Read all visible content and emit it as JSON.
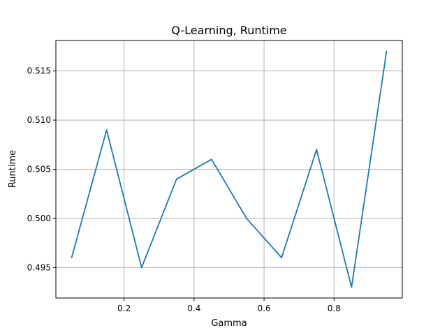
{
  "chart_data": {
    "type": "line",
    "title": "Q-Learning, Runtime",
    "xlabel": "Gamma",
    "ylabel": "Runtime",
    "xlim": [
      0.005,
      0.995
    ],
    "ylim": [
      0.4919,
      0.5181
    ],
    "xticks": [
      0.2,
      0.4,
      0.6,
      0.8
    ],
    "xtick_labels": [
      "0.2",
      "0.4",
      "0.6",
      "0.8"
    ],
    "yticks": [
      0.495,
      0.5,
      0.505,
      0.51,
      0.515
    ],
    "ytick_labels": [
      "0.495",
      "0.500",
      "0.505",
      "0.510",
      "0.515"
    ],
    "grid": true,
    "series": [
      {
        "color": "#1f77b4",
        "x": [
          0.05,
          0.15,
          0.25,
          0.35,
          0.45,
          0.55,
          0.65,
          0.75,
          0.85,
          0.95
        ],
        "values": [
          0.496,
          0.509,
          0.495,
          0.504,
          0.506,
          0.5,
          0.496,
          0.507,
          0.493,
          0.517
        ]
      }
    ]
  }
}
